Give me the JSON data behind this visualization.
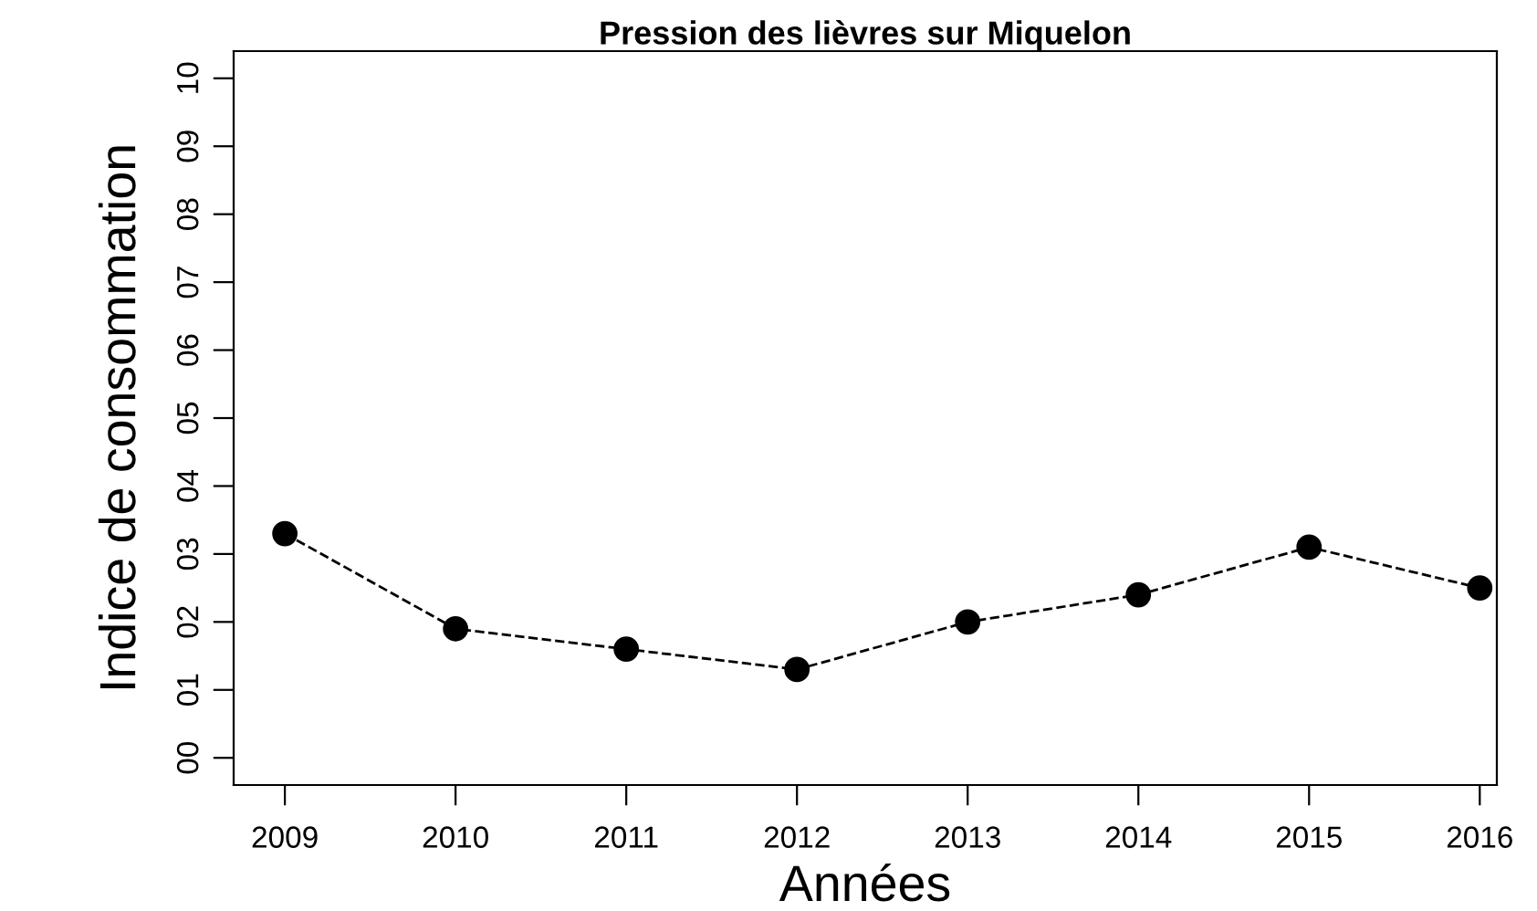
{
  "chart_data": {
    "type": "line",
    "title": "Pression des lièvres sur Miquelon",
    "xlabel": "Années",
    "ylabel": "Indice de consommation",
    "x": [
      2009,
      2010,
      2011,
      2012,
      2013,
      2014,
      2015,
      2016
    ],
    "series": [
      {
        "color": "#000000",
        "values": [
          3.3,
          1.9,
          1.6,
          1.3,
          2.0,
          2.4,
          3.1,
          2.5
        ]
      }
    ],
    "xlim": [
      2008.7,
      2016.1
    ],
    "ylim": [
      -0.4,
      10.4
    ],
    "xticks": [
      2009,
      2010,
      2011,
      2012,
      2013,
      2014,
      2015,
      2016
    ],
    "yticks": [
      {
        "value": 0,
        "label": "00"
      },
      {
        "value": 1,
        "label": "01"
      },
      {
        "value": 2,
        "label": "02"
      },
      {
        "value": 3,
        "label": "03"
      },
      {
        "value": 4,
        "label": "04"
      },
      {
        "value": 5,
        "label": "05"
      },
      {
        "value": 6,
        "label": "06"
      },
      {
        "value": 7,
        "label": "07"
      },
      {
        "value": 8,
        "label": "08"
      },
      {
        "value": 9,
        "label": "09"
      },
      10
    ],
    "marker": "circle",
    "line_style": "dashed",
    "grid": false,
    "legend": false
  }
}
